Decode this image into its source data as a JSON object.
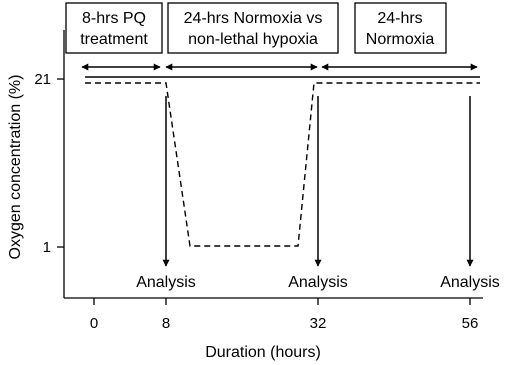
{
  "phases": [
    {
      "lines": [
        "8-hrs PQ",
        "treatment"
      ],
      "start": 0,
      "end": 8
    },
    {
      "lines": [
        "24-hrs Normoxia vs",
        "non-lethal hypoxia"
      ],
      "start": 8,
      "end": 32
    },
    {
      "lines": [
        "24-hrs",
        "Normoxia"
      ],
      "start": 32,
      "end": 56
    }
  ],
  "axes": {
    "y_label": "Oxygen concentration (%)",
    "y_ticks": [
      "21",
      "1"
    ],
    "x_label": "Duration (hours)",
    "x_ticks": [
      "0",
      "8",
      "32",
      "56"
    ]
  },
  "analysis": {
    "label": "Analysis",
    "times": [
      8,
      32,
      56
    ]
  },
  "conditions": {
    "normoxia": {
      "style": "solid",
      "oxygen_percent": 21
    },
    "hypoxia": {
      "style": "dashed",
      "points": [
        [
          -1.5,
          21
        ],
        [
          8,
          21
        ],
        [
          11.5,
          1
        ],
        [
          30.5,
          1
        ],
        [
          32,
          21
        ],
        [
          56,
          21
        ]
      ]
    }
  }
}
